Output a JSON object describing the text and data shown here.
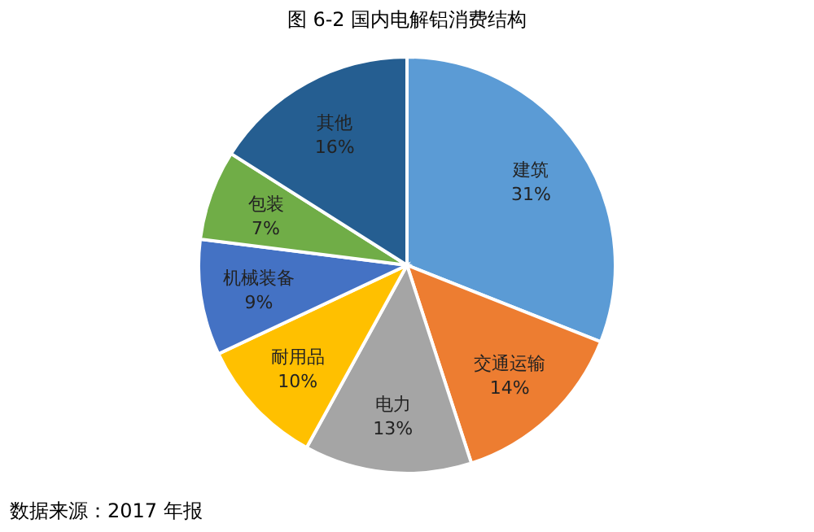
{
  "chart_data": {
    "type": "pie",
    "title": "图 6-2  国内电解铝消费结构",
    "categories": [
      "建筑",
      "交通运输",
      "电力",
      "耐用品",
      "机械装备",
      "包装",
      "其他"
    ],
    "values": [
      31,
      14,
      13,
      10,
      9,
      7,
      16
    ],
    "colors": [
      "#5b9bd5",
      "#ed7d31",
      "#a5a5a5",
      "#ffc000",
      "#4472c4",
      "#70ad47",
      "#255e91"
    ],
    "value_labels": [
      "31%",
      "14%",
      "13%",
      "10%",
      "9%",
      "7%",
      "16%"
    ],
    "annotations": [
      "数据来源：2017 年报"
    ]
  }
}
